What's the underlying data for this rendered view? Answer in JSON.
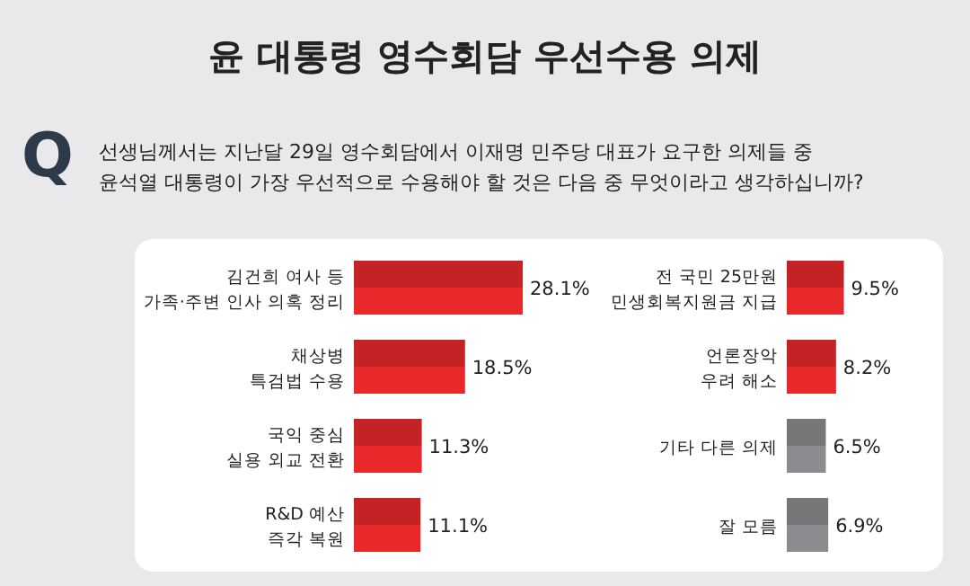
{
  "chart_data": [
    {
      "type": "bar",
      "orientation": "horizontal",
      "title": "윤 대통령 영수회담 우선수용 의제",
      "annotations": [
        "Q",
        "선생님께서는 지난달 29일 영수회담에서 이재명 민주당 대표가 요구한 의제들 중\n윤석열 대통령이 가장 우선적으로 수용해야 할 것은 다음 중 무엇이라고 생각하십니까?"
      ],
      "categories": [
        "김건희 여사 등\n가족·주변 인사 의혹 정리",
        "채상병\n특검법 수용",
        "국익 중심\n실용 외교 전환",
        "R&D 예산\n즉각 복원"
      ],
      "values": [
        28.1,
        18.5,
        11.3,
        11.1
      ],
      "colors": [
        "#e8282b",
        "#e8282b",
        "#e8282b",
        "#e8282b"
      ],
      "value_labels": [
        "28.1%",
        "18.5%",
        "11.3%",
        "11.1%"
      ]
    },
    {
      "type": "bar",
      "orientation": "horizontal",
      "categories": [
        "전 국민 25만원\n민생회복지원금 지급",
        "언론장악\n우려 해소",
        "기타 다른 의제",
        "잘 모름"
      ],
      "values": [
        9.5,
        8.2,
        6.5,
        6.9
      ],
      "colors": [
        "#e8282b",
        "#e8282b",
        "#8c8c90",
        "#8c8c90"
      ],
      "value_labels": [
        "9.5%",
        "8.2%",
        "6.5%",
        "6.9%"
      ]
    }
  ]
}
